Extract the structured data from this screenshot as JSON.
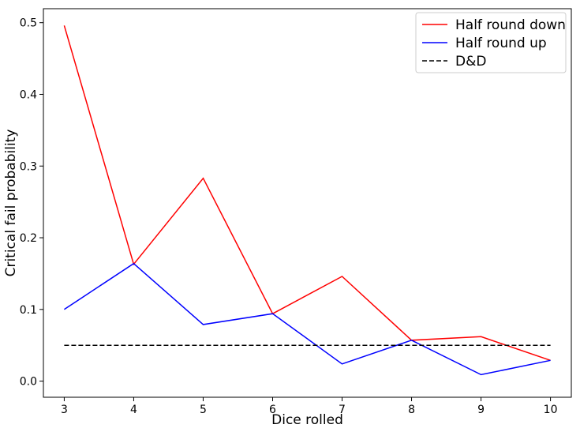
{
  "chart_data": {
    "type": "line",
    "title": "",
    "xlabel": "Dice rolled",
    "ylabel": "Critical fail probability",
    "x": [
      3,
      4,
      5,
      6,
      7,
      8,
      9,
      10
    ],
    "xlim": [
      2.7,
      10.3
    ],
    "ylim": [
      -0.0225,
      0.5195
    ],
    "xticks": [
      3,
      4,
      5,
      6,
      7,
      8,
      9,
      10
    ],
    "yticks": [
      0.0,
      0.1,
      0.2,
      0.3,
      0.4,
      0.5
    ],
    "ytick_labels": [
      "0.0",
      "0.1",
      "0.2",
      "0.3",
      "0.4",
      "0.5"
    ],
    "grid": false,
    "legend_position": "top-right",
    "series": [
      {
        "name": "Half round down",
        "color": "#ff0000",
        "style": "solid",
        "values": [
          0.496,
          0.163,
          0.283,
          0.094,
          0.146,
          0.057,
          0.062,
          0.029
        ]
      },
      {
        "name": "Half round up",
        "color": "#0000ff",
        "style": "solid",
        "values": [
          0.1,
          0.164,
          0.079,
          0.094,
          0.024,
          0.057,
          0.009,
          0.029
        ]
      },
      {
        "name": "D&D",
        "color": "#000000",
        "style": "dashed",
        "values": [
          0.05,
          0.05,
          0.05,
          0.05,
          0.05,
          0.05,
          0.05,
          0.05
        ]
      }
    ]
  }
}
